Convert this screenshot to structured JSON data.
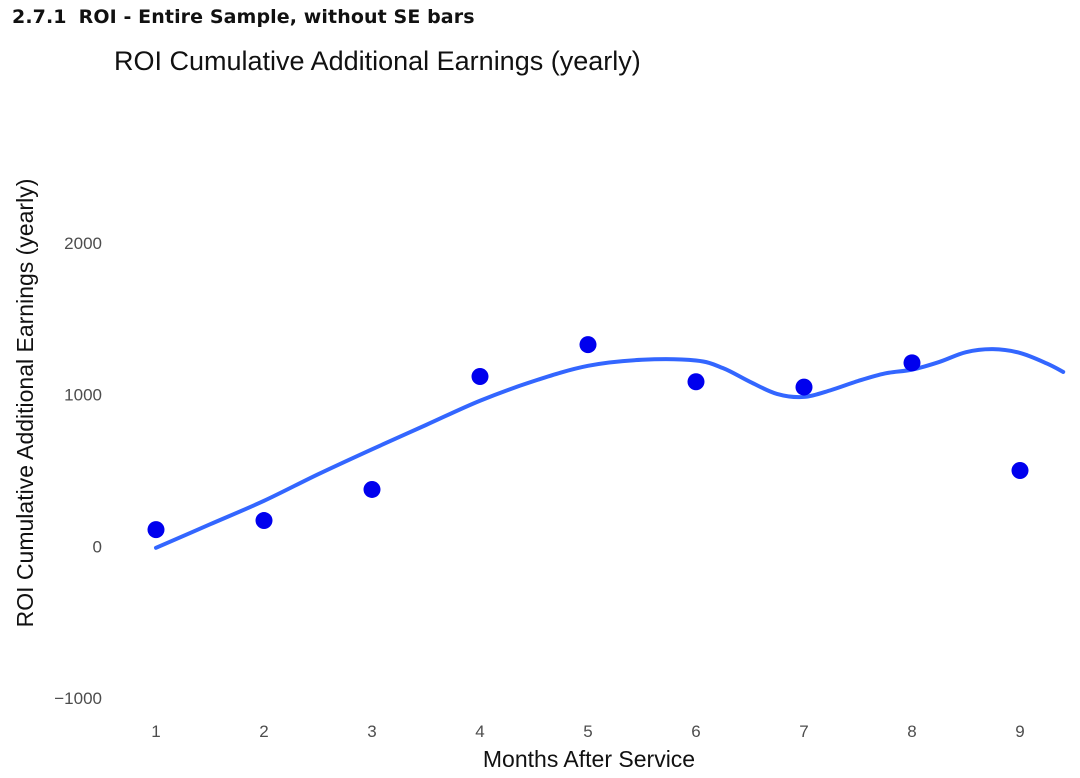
{
  "section": {
    "number": "2.7.1",
    "title": "ROI - Entire Sample, without SE bars"
  },
  "chart_data": {
    "type": "scatter",
    "title": "ROI Cumulative Additional Earnings (yearly)",
    "xlabel": "Months After Service",
    "ylabel": "ROI Cumulative Additional Earnings (yearly)",
    "xlim": [
      0.0,
      9.4
    ],
    "ylim": [
      -1000,
      2000
    ],
    "x_ticks": [
      1,
      2,
      3,
      4,
      5,
      6,
      7,
      8,
      9
    ],
    "y_ticks": [
      -1000,
      0,
      1000,
      2000
    ],
    "y_tick_labels": [
      "−1000",
      "0",
      "1000",
      "2000"
    ],
    "grid": false,
    "legend": "none",
    "series": [
      {
        "kind": "points",
        "color": "#0000ee",
        "x": [
          1,
          2,
          3,
          4,
          5,
          6,
          7,
          8,
          9
        ],
        "y": [
          110,
          170,
          375,
          1120,
          1330,
          1085,
          1050,
          1210,
          500
        ]
      },
      {
        "kind": "smooth-line",
        "color": "#3366ff",
        "x": [
          1,
          1.5,
          2,
          2.5,
          3,
          3.5,
          4,
          4.5,
          5,
          5.5,
          6,
          6.25,
          6.5,
          6.75,
          7,
          7.25,
          7.5,
          7.75,
          8,
          8.25,
          8.5,
          8.75,
          9,
          9.25,
          9.4
        ],
        "y": [
          -10,
          145,
          300,
          475,
          640,
          800,
          960,
          1090,
          1190,
          1230,
          1225,
          1175,
          1085,
          1005,
          985,
          1030,
          1090,
          1140,
          1165,
          1215,
          1280,
          1300,
          1275,
          1205,
          1150
        ]
      }
    ]
  }
}
